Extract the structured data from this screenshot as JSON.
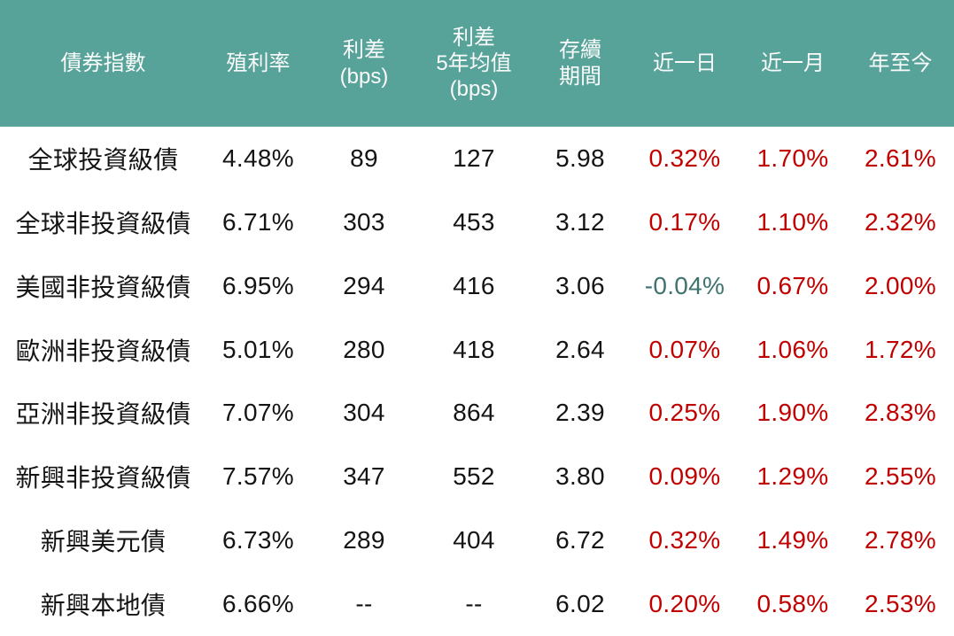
{
  "colors": {
    "header_bg": "#57A39A",
    "header_text": "#FBFBFB",
    "body_text": "#141414",
    "up": "#C00000",
    "down": "#3E736F"
  },
  "table": {
    "headers": [
      "債券指數",
      "殖利率",
      "利差\n(bps)",
      "利差\n5年均值\n(bps)",
      "存續\n期間",
      "近一日",
      "近一月",
      "年至今"
    ],
    "rows": [
      [
        "全球投資級債",
        "4.48%",
        "89",
        "127",
        "5.98",
        "0.32%",
        "1.70%",
        "2.61%"
      ],
      [
        "全球非投資級債",
        "6.71%",
        "303",
        "453",
        "3.12",
        "0.17%",
        "1.10%",
        "2.32%"
      ],
      [
        "美國非投資級債",
        "6.95%",
        "294",
        "416",
        "3.06",
        "-0.04%",
        "0.67%",
        "2.00%"
      ],
      [
        "歐洲非投資級債",
        "5.01%",
        "280",
        "418",
        "2.64",
        "0.07%",
        "1.06%",
        "1.72%"
      ],
      [
        "亞洲非投資級債",
        "7.07%",
        "304",
        "864",
        "2.39",
        "0.25%",
        "1.90%",
        "2.83%"
      ],
      [
        "新興非投資級債",
        "7.57%",
        "347",
        "552",
        "3.80",
        "0.09%",
        "1.29%",
        "2.55%"
      ],
      [
        "新興美元債",
        "6.73%",
        "289",
        "404",
        "6.72",
        "0.32%",
        "1.49%",
        "2.78%"
      ],
      [
        "新興本地債",
        "6.66%",
        "--",
        "--",
        "6.02",
        "0.20%",
        "0.58%",
        "2.53%"
      ]
    ]
  },
  "chart_data": {
    "type": "table",
    "columns": [
      "債券指數",
      "殖利率",
      "利差(bps)",
      "利差5年均值(bps)",
      "存續期間",
      "近一日",
      "近一月",
      "年至今"
    ],
    "rows": [
      {
        "index": "全球投資級債",
        "yield": "4.48%",
        "spread_bps": 89,
        "spread_5y_avg_bps": 127,
        "duration": 5.98,
        "chg_1d": "0.32%",
        "chg_1m": "1.70%",
        "chg_ytd": "2.61%"
      },
      {
        "index": "全球非投資級債",
        "yield": "6.71%",
        "spread_bps": 303,
        "spread_5y_avg_bps": 453,
        "duration": 3.12,
        "chg_1d": "0.17%",
        "chg_1m": "1.10%",
        "chg_ytd": "2.32%"
      },
      {
        "index": "美國非投資級債",
        "yield": "6.95%",
        "spread_bps": 294,
        "spread_5y_avg_bps": 416,
        "duration": 3.06,
        "chg_1d": "-0.04%",
        "chg_1m": "0.67%",
        "chg_ytd": "2.00%"
      },
      {
        "index": "歐洲非投資級債",
        "yield": "5.01%",
        "spread_bps": 280,
        "spread_5y_avg_bps": 418,
        "duration": 2.64,
        "chg_1d": "0.07%",
        "chg_1m": "1.06%",
        "chg_ytd": "1.72%"
      },
      {
        "index": "亞洲非投資級債",
        "yield": "7.07%",
        "spread_bps": 304,
        "spread_5y_avg_bps": 864,
        "duration": 2.39,
        "chg_1d": "0.25%",
        "chg_1m": "1.90%",
        "chg_ytd": "2.83%"
      },
      {
        "index": "新興非投資級債",
        "yield": "7.57%",
        "spread_bps": 347,
        "spread_5y_avg_bps": 552,
        "duration": 3.8,
        "chg_1d": "0.09%",
        "chg_1m": "1.29%",
        "chg_ytd": "2.55%"
      },
      {
        "index": "新興美元債",
        "yield": "6.73%",
        "spread_bps": 289,
        "spread_5y_avg_bps": 404,
        "duration": 6.72,
        "chg_1d": "0.32%",
        "chg_1m": "1.49%",
        "chg_ytd": "2.78%"
      },
      {
        "index": "新興本地債",
        "yield": "6.66%",
        "spread_bps": null,
        "spread_5y_avg_bps": null,
        "duration": 6.02,
        "chg_1d": "0.20%",
        "chg_1m": "0.58%",
        "chg_ytd": "2.53%"
      }
    ],
    "notes": "positive changes shown in red (#C00000), negative changes shown in teal (#3E736F); '--' indicates no data"
  }
}
